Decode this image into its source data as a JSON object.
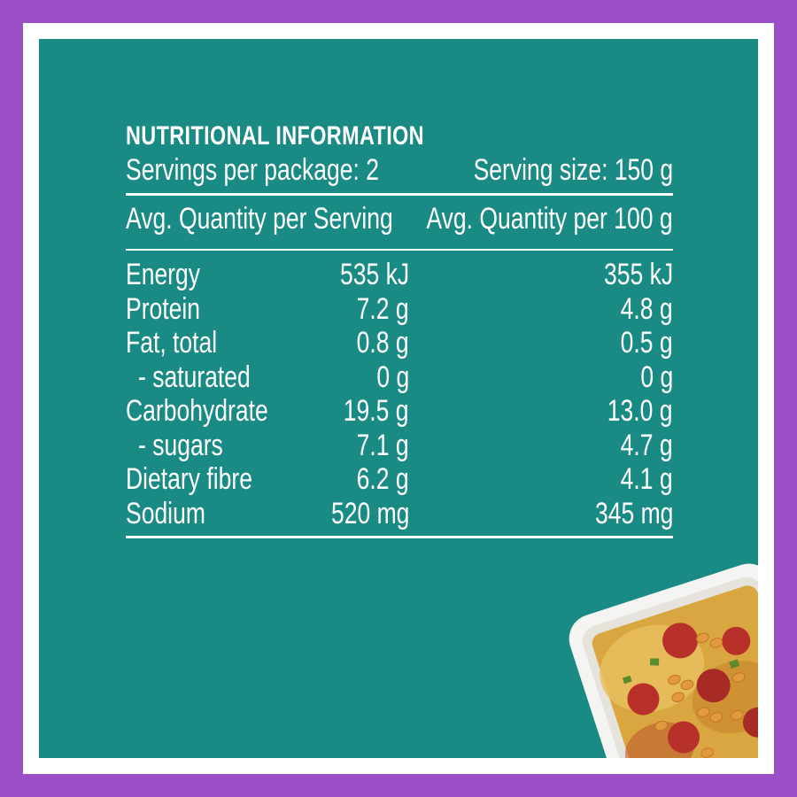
{
  "panel": {
    "title": "NUTRITIONAL INFORMATION",
    "servings_per_package": "Servings per package: 2",
    "serving_size": "Serving size: 150 g",
    "header_per_serving": "Avg. Quantity per Serving",
    "header_per_100g": "Avg. Quantity per 100 g",
    "rows": [
      {
        "label": "Energy",
        "per_serving": "535 kJ",
        "per_100g": "355 kJ"
      },
      {
        "label": "Protein",
        "per_serving": "7.2 g",
        "per_100g": "4.8 g"
      },
      {
        "label": "Fat, total",
        "per_serving": "0.8 g",
        "per_100g": "0.5 g"
      },
      {
        "label": "- saturated",
        "per_serving": "0 g",
        "per_100g": "0 g"
      },
      {
        "label": "Carbohydrate",
        "per_serving": "19.5 g",
        "per_100g": "13.0 g"
      },
      {
        "label": "- sugars",
        "per_serving": "7.1 g",
        "per_100g": "4.7 g"
      },
      {
        "label": "Dietary fibre",
        "per_serving": "6.2 g",
        "per_100g": "4.1 g"
      },
      {
        "label": "Sodium",
        "per_serving": "520 mg",
        "per_100g": "345 mg"
      }
    ]
  },
  "colors": {
    "outer_border": "#9b4fc6",
    "inner_border": "#ffffff",
    "panel_background": "#1a8a84",
    "text": "#ffffff"
  },
  "image": {
    "subject": "baked pasta dish with beans and pepperoni in white ceramic baking dish"
  }
}
